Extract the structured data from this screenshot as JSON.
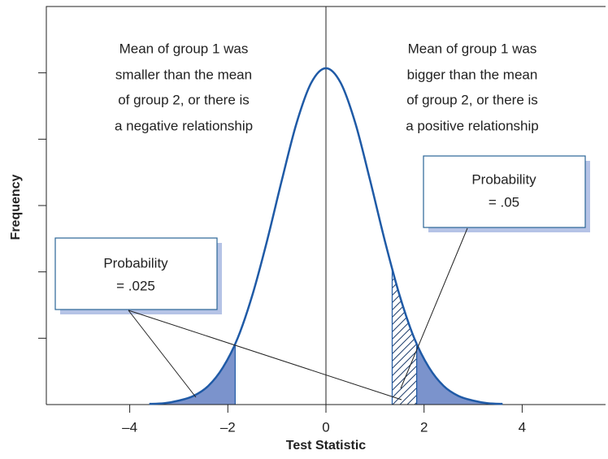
{
  "chart_data": {
    "type": "distribution",
    "x_label": "Test Statistic",
    "y_label": "Frequency",
    "xlim": [
      -5.7,
      5.7
    ],
    "xticks": [
      {
        "value": -4,
        "label": "–4"
      },
      {
        "value": -2,
        "label": "–2"
      },
      0,
      2,
      4
    ],
    "ylim": [
      0,
      6
    ],
    "yticks": [
      1,
      2,
      3,
      4,
      5
    ],
    "curve_color": "#1f5aa6",
    "fill_color": "#7b93cc",
    "x": [
      -3.6,
      -3.3,
      -3.0,
      -2.7,
      -2.4,
      -2.1,
      -1.8,
      -1.5,
      -1.2,
      -0.9,
      -0.6,
      -0.3,
      0,
      0.3,
      0.6,
      0.9,
      1.2,
      1.5,
      1.8,
      2.1,
      2.4,
      2.7,
      3.0,
      3.3,
      3.6
    ],
    "values": [
      0.01,
      0.02,
      0.06,
      0.13,
      0.28,
      0.56,
      1.0,
      1.65,
      2.47,
      3.38,
      4.24,
      4.85,
      5.07,
      4.85,
      4.24,
      3.38,
      2.47,
      1.65,
      1.0,
      0.56,
      0.28,
      0.13,
      0.06,
      0.02,
      0.01
    ],
    "shaded_regions": [
      {
        "from": -3.6,
        "to": -1.85,
        "pattern": "solid"
      },
      {
        "from": 1.35,
        "to": 1.85,
        "pattern": "hatch"
      },
      {
        "from": 1.85,
        "to": 3.6,
        "pattern": "solid"
      }
    ],
    "annotations": [
      [
        "Mean of group 1 was",
        "smaller than the mean",
        "of group 2, or there is",
        "a negative relationship"
      ],
      [
        "Mean of group 1 was",
        "bigger than the mean",
        "of group 2, or there is",
        "a positive relationship"
      ]
    ],
    "callouts": [
      [
        "Probability",
        "= .025"
      ],
      [
        "Probability",
        "= .05"
      ]
    ]
  }
}
